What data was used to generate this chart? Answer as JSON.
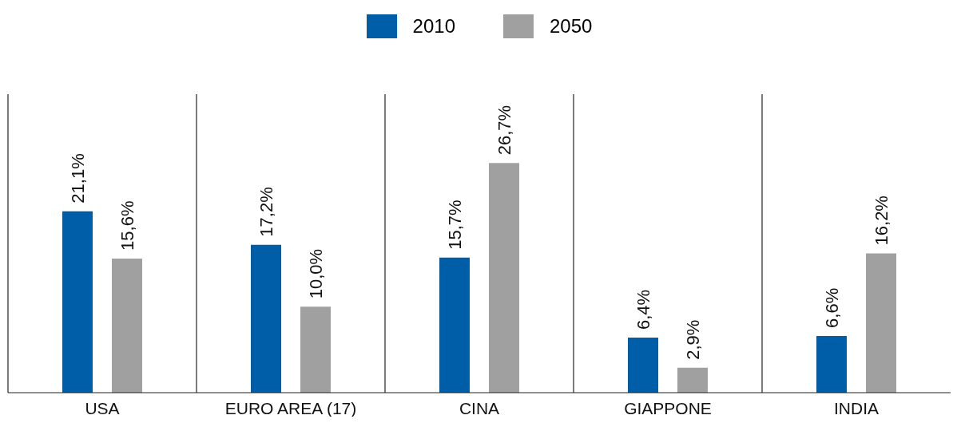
{
  "chart_data": {
    "type": "bar",
    "categories": [
      "USA",
      "EURO AREA (17)",
      "CINA",
      "GIAPPONE",
      "INDIA"
    ],
    "series": [
      {
        "name": "2010",
        "color": "#005ea8",
        "values": [
          21.1,
          17.2,
          15.7,
          6.4,
          6.6
        ],
        "value_labels": [
          "21,1%",
          "17,2%",
          "15,7%",
          "6,4%",
          "6,6%"
        ]
      },
      {
        "name": "2050",
        "color": "#a0a0a0",
        "values": [
          15.6,
          10.0,
          26.7,
          2.9,
          16.2
        ],
        "value_labels": [
          "15,6%",
          "10,0%",
          "26,7%",
          "2,9%",
          "16,2%"
        ]
      }
    ],
    "grid": "x",
    "legend": "top"
  }
}
